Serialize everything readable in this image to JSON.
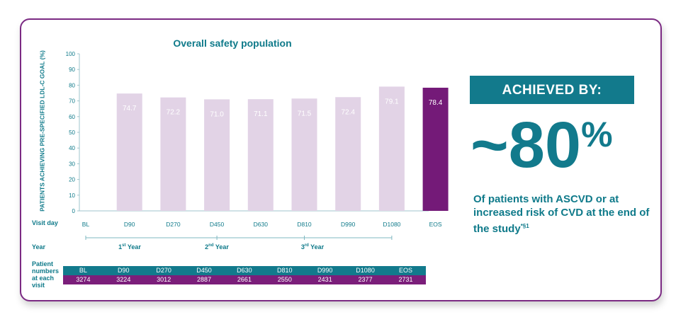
{
  "chart_data": {
    "type": "bar",
    "title": "Overall safety population",
    "ylabel": "PATIENTS ACHIEVING PRE-SPECIFIED LDL-C GOAL (%)",
    "xlabel": "Visit day",
    "ylim": [
      0,
      100
    ],
    "yticks": [
      0,
      10,
      20,
      30,
      40,
      50,
      60,
      70,
      80,
      90,
      100
    ],
    "categories": [
      "BL",
      "D90",
      "D270",
      "D450",
      "D630",
      "D810",
      "D990",
      "D1080",
      "EOS"
    ],
    "values": [
      null,
      74.7,
      72.2,
      71.0,
      71.1,
      71.5,
      72.4,
      79.1,
      78.4
    ],
    "value_labels": [
      "",
      "74.7",
      "72.2",
      "71.0",
      "71.1",
      "71.5",
      "72.4",
      "79.1",
      "78.4"
    ],
    "highlight_category": "EOS",
    "colors": {
      "bar": "#e2d3e6",
      "highlight": "#741a78",
      "accent": "#127a8c",
      "border": "#7b2a83"
    },
    "year_row_label": "Year",
    "years": [
      {
        "num": "1",
        "suffix": "st",
        "word": " Year",
        "from": "BL",
        "to": "D450"
      },
      {
        "num": "2",
        "suffix": "nd",
        "word": " Year",
        "from": "D450",
        "to": "D810"
      },
      {
        "num": "3",
        "suffix": "rd",
        "word": " Year",
        "from": "D810",
        "to": "D1080"
      }
    ]
  },
  "patient_numbers": {
    "label": "Patient numbers at each visit",
    "visits": [
      "BL",
      "D90",
      "D270",
      "D450",
      "D630",
      "D810",
      "D990",
      "D1080",
      "EOS"
    ],
    "counts": [
      "3274",
      "3224",
      "3012",
      "2887",
      "2661",
      "2550",
      "2431",
      "2377",
      "2731"
    ]
  },
  "callout": {
    "heading": "ACHIEVED BY:",
    "big_value": "~80",
    "big_unit": "%",
    "description": "Of patients with ASCVD or at increased risk of CVD at the end of the study",
    "footnote_marks": "*§1"
  }
}
